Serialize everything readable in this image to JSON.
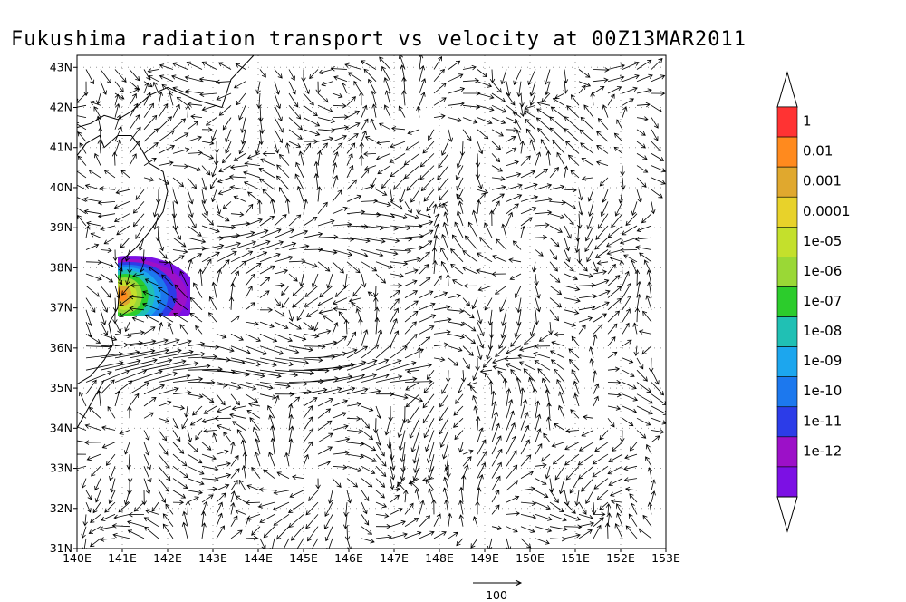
{
  "title": "Fukushima radiation transport vs velocity at 00Z13MAR2011",
  "map": {
    "lon_range": [
      140,
      153
    ],
    "lat_range": [
      31,
      43.3
    ],
    "x_ticks": [
      "140E",
      "141E",
      "142E",
      "143E",
      "144E",
      "145E",
      "146E",
      "147E",
      "148E",
      "149E",
      "150E",
      "151E",
      "152E",
      "153E"
    ],
    "y_ticks": [
      "31N",
      "32N",
      "33N",
      "34N",
      "35N",
      "36N",
      "37N",
      "38N",
      "39N",
      "40N",
      "41N",
      "42N",
      "43N"
    ],
    "grid": "dotted",
    "source_lon": 141.0,
    "source_lat": 37.4
  },
  "vector_key": {
    "label": "100"
  },
  "colorbar": {
    "labels": [
      "1",
      "0.01",
      "0.001",
      "0.0001",
      "1e-05",
      "1e-06",
      "1e-07",
      "1e-08",
      "1e-09",
      "1e-10",
      "1e-11",
      "1e-12"
    ],
    "colors": [
      "#ff3333",
      "#ff8a1e",
      "#e0a82e",
      "#e8d22a",
      "#c4e02c",
      "#9ad836",
      "#2ccc2c",
      "#20c0b4",
      "#1ca6ee",
      "#1c78ee",
      "#2c3ce8",
      "#9c10c8",
      "#7c10e4"
    ]
  },
  "colors": {
    "coast": "#000000",
    "arrow": "#000000"
  }
}
